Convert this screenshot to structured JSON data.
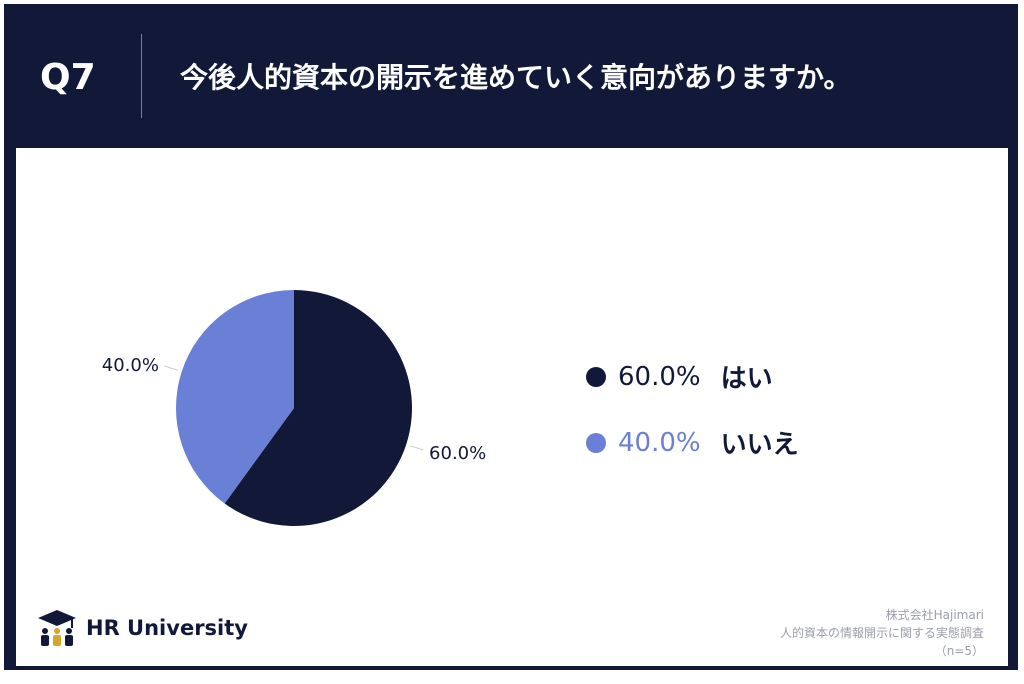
{
  "header": {
    "question_number": "Q7",
    "question_text": "今後人的資本の開示を進めていく意向がありますか。"
  },
  "colors": {
    "navy": "#121838",
    "periwinkle": "#6a7fd6"
  },
  "chart_data": {
    "type": "pie",
    "categories": [
      "はい",
      "いいえ"
    ],
    "values": [
      60.0,
      40.0
    ],
    "value_labels": [
      "60.0%",
      "40.0%"
    ],
    "colors": [
      "#121838",
      "#6a7fd6"
    ],
    "legend_placement": "right"
  },
  "legend": [
    {
      "percent": "60.0%",
      "label": "はい",
      "color": "#121838"
    },
    {
      "percent": "40.0%",
      "label": "いいえ",
      "color": "#6a7fd6"
    }
  ],
  "brand": {
    "name": "HR University",
    "icon": "graduation-cap-people-icon"
  },
  "source": {
    "line1": "株式会社Hajimari",
    "line2": "人的資本の情報開示に関する実態調査",
    "line3": "（n=5）"
  }
}
